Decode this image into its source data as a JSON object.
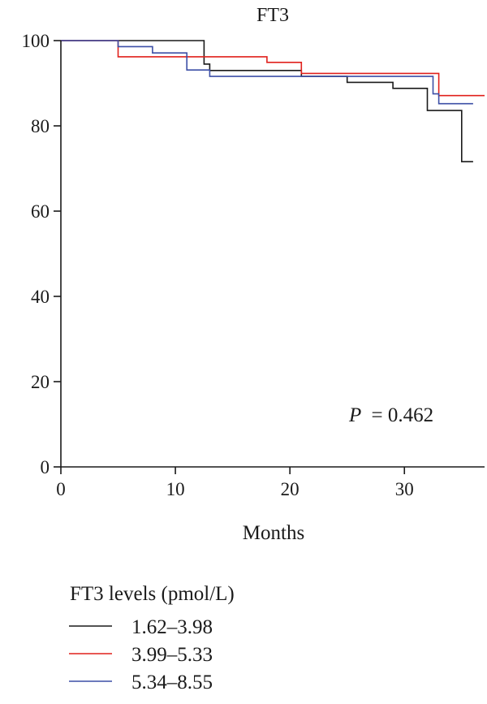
{
  "chart_data": {
    "type": "line",
    "step": true,
    "title": "FT3",
    "xlabel": "Months",
    "ylabel": "",
    "xlim": [
      0,
      37
    ],
    "ylim": [
      0,
      100
    ],
    "xticks": [
      0,
      10,
      20,
      30
    ],
    "yticks": [
      0,
      20,
      40,
      60,
      80,
      100
    ],
    "annotation": {
      "p_label": "P",
      "p_value": "= 0.462"
    },
    "legend": {
      "title": "FT3 levels (pmol/L)",
      "position": "below"
    },
    "series": [
      {
        "name": "1.62–3.98",
        "color": "#1a1a1a",
        "x": [
          0,
          12,
          12.5,
          13,
          21,
          25,
          29,
          32,
          34,
          35,
          36
        ],
        "y": [
          100,
          100,
          94.5,
          93,
          91.6,
          90.2,
          88.8,
          83.6,
          83.6,
          71.6,
          71.6
        ]
      },
      {
        "name": "3.99–5.33",
        "color": "#e0201c",
        "x": [
          0,
          5,
          16,
          18,
          21,
          30,
          33,
          37
        ],
        "y": [
          100,
          96.2,
          96.2,
          94.9,
          92.3,
          92.3,
          87.1,
          87.1
        ]
      },
      {
        "name": "5.34–8.55",
        "color": "#3c4fa6",
        "x": [
          0,
          5,
          8,
          11,
          13,
          21,
          30,
          32.5,
          33,
          36
        ],
        "y": [
          100,
          98.6,
          97.1,
          93.1,
          91.6,
          91.6,
          91.6,
          87.5,
          85.2,
          85.2
        ]
      }
    ]
  }
}
